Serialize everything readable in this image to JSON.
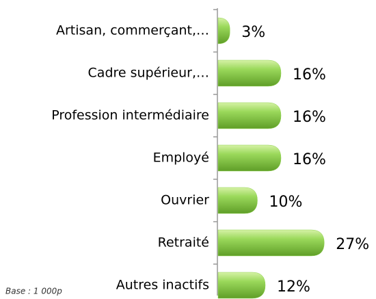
{
  "chart_data": {
    "type": "bar",
    "categories": [
      "Artisan, commerçant,…",
      "Cadre supérieur,…",
      "Profession intermédiaire",
      "Employé",
      "Ouvrier",
      "Retraité",
      "Autres inactifs"
    ],
    "values": [
      3,
      16,
      16,
      16,
      10,
      27,
      12
    ],
    "value_labels": [
      "3%",
      "16%",
      "16%",
      "16%",
      "10%",
      "27%",
      "12%"
    ],
    "color": "#8fd14f",
    "annotation": "Base : 1 000p"
  }
}
